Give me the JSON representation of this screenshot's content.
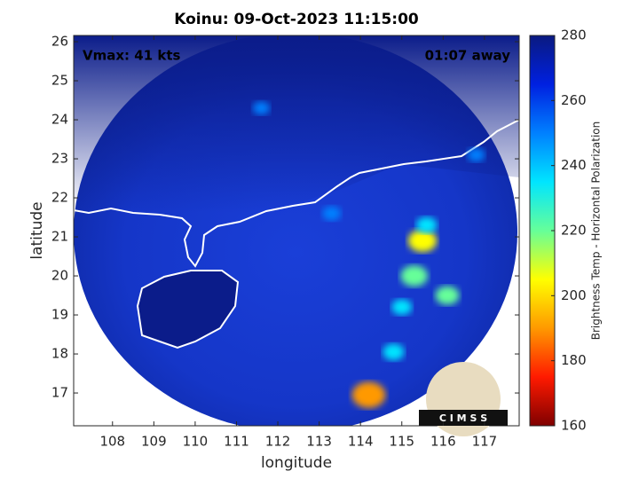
{
  "chart_data": {
    "type": "heatmap",
    "title": "Koinu: 09-Oct-2023 11:15:00",
    "annotations": [
      "Vmax: 41 kts",
      "01:07 away"
    ],
    "xlabel": "longitude",
    "ylabel": "latitude",
    "xlim": [
      107.06,
      117.84
    ],
    "ylim": [
      16.16,
      26.16
    ],
    "xticks": [
      108,
      109,
      110,
      111,
      112,
      113,
      114,
      115,
      116,
      117
    ],
    "yticks": [
      17,
      18,
      19,
      20,
      21,
      22,
      23,
      24,
      25,
      26
    ],
    "colorbar": {
      "label": "Brightness Temp - Horizontal Polarization",
      "lim": [
        160,
        280
      ],
      "ticks": [
        160,
        180,
        200,
        220,
        240,
        260,
        280
      ]
    },
    "colormap": [
      "#7f0000",
      "#ff1a00",
      "#ff9900",
      "#ffff00",
      "#66ff99",
      "#00e5ff",
      "#0080ff",
      "#0020e0",
      "#0a1a80"
    ],
    "x": [
      115.5,
      115.6,
      115.3,
      116.1,
      115.0,
      114.2,
      114.8,
      113.3,
      116.8,
      111.6
    ],
    "y": [
      20.9,
      21.3,
      20.0,
      19.5,
      19.2,
      16.95,
      18.05,
      21.6,
      23.1,
      24.3
    ],
    "values": [
      208,
      238,
      214,
      226,
      240,
      190,
      236,
      246,
      250,
      252
    ],
    "logo": "C I M S S"
  }
}
